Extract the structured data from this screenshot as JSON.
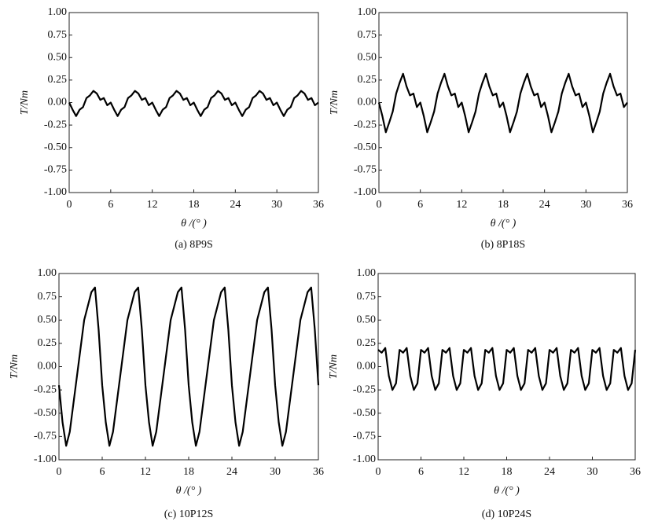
{
  "chart_data": [
    {
      "type": "line",
      "caption": "(a) 8P9S",
      "xlabel": "θ /(°  )",
      "ylabel": "T/Nm",
      "color": "#000000",
      "xlim": [
        0,
        36
      ],
      "xticks": [
        0,
        6,
        12,
        18,
        24,
        30,
        36
      ],
      "ylim": [
        -1,
        1
      ],
      "yticks": [
        {
          "value": -1,
          "label": "-1.00"
        },
        {
          "value": -0.75,
          "label": "-0.75"
        },
        {
          "value": -0.5,
          "label": "-0.50"
        },
        {
          "value": -0.25,
          "label": "-0.25"
        },
        {
          "value": 0,
          "label": "0.00"
        },
        {
          "value": 0.25,
          "label": "0.25"
        },
        {
          "value": 0.5,
          "label": "0.50"
        },
        {
          "value": 0.75,
          "label": "0.75"
        },
        {
          "value": 1,
          "label": "1.00"
        }
      ],
      "x": [
        0,
        0.5,
        1,
        1.5,
        2,
        2.5,
        3,
        3.5,
        4,
        4.5,
        5,
        5.5,
        6,
        6.5,
        7,
        7.5,
        8,
        8.5,
        9,
        9.5,
        10,
        10.5,
        11,
        11.5,
        12,
        12.5,
        13,
        13.5,
        14,
        14.5,
        15,
        15.5,
        16,
        16.5,
        17,
        17.5,
        18,
        18.5,
        19,
        19.5,
        20,
        20.5,
        21,
        21.5,
        22,
        22.5,
        23,
        23.5,
        24,
        24.5,
        25,
        25.5,
        26,
        26.5,
        27,
        27.5,
        28,
        28.5,
        29,
        29.5,
        30,
        30.5,
        31,
        31.5,
        32,
        32.5,
        33,
        33.5,
        34,
        34.5,
        35,
        35.5,
        36
      ],
      "values": [
        0.0,
        -0.08,
        -0.15,
        -0.08,
        -0.05,
        0.05,
        0.08,
        0.13,
        0.1,
        0.03,
        0.05,
        -0.03,
        0.0,
        -0.08,
        -0.15,
        -0.08,
        -0.05,
        0.05,
        0.08,
        0.13,
        0.1,
        0.03,
        0.05,
        -0.03,
        0.0,
        -0.08,
        -0.15,
        -0.08,
        -0.05,
        0.05,
        0.08,
        0.13,
        0.1,
        0.03,
        0.05,
        -0.03,
        0.0,
        -0.08,
        -0.15,
        -0.08,
        -0.05,
        0.05,
        0.08,
        0.13,
        0.1,
        0.03,
        0.05,
        -0.03,
        0.0,
        -0.08,
        -0.15,
        -0.08,
        -0.05,
        0.05,
        0.08,
        0.13,
        0.1,
        0.03,
        0.05,
        -0.03,
        0.0,
        -0.08,
        -0.15,
        -0.08,
        -0.05,
        0.05,
        0.08,
        0.13,
        0.1,
        0.03,
        0.05,
        -0.03,
        0.0
      ]
    },
    {
      "type": "line",
      "caption": "(b) 8P18S",
      "xlabel": "θ /(°  )",
      "ylabel": "T/Nm",
      "color": "#000000",
      "xlim": [
        0,
        36
      ],
      "xticks": [
        0,
        6,
        12,
        18,
        24,
        30,
        36
      ],
      "ylim": [
        -1,
        1
      ],
      "yticks": [
        {
          "value": -1,
          "label": "-1.00"
        },
        {
          "value": -0.75,
          "label": "-0.75"
        },
        {
          "value": -0.5,
          "label": "-0.50"
        },
        {
          "value": -0.25,
          "label": "-0.25"
        },
        {
          "value": 0,
          "label": "0.00"
        },
        {
          "value": 0.25,
          "label": "0.25"
        },
        {
          "value": 0.5,
          "label": "0.50"
        },
        {
          "value": 0.75,
          "label": "0.75"
        },
        {
          "value": 1,
          "label": "1.00"
        }
      ],
      "x": [
        0,
        0.5,
        1,
        1.5,
        2,
        2.5,
        3,
        3.5,
        4,
        4.5,
        5,
        5.5,
        6,
        6.5,
        7,
        7.5,
        8,
        8.5,
        9,
        9.5,
        10,
        10.5,
        11,
        11.5,
        12,
        12.5,
        13,
        13.5,
        14,
        14.5,
        15,
        15.5,
        16,
        16.5,
        17,
        17.5,
        18,
        18.5,
        19,
        19.5,
        20,
        20.5,
        21,
        21.5,
        22,
        22.5,
        23,
        23.5,
        24,
        24.5,
        25,
        25.5,
        26,
        26.5,
        27,
        27.5,
        28,
        28.5,
        29,
        29.5,
        30,
        30.5,
        31,
        31.5,
        32,
        32.5,
        33,
        33.5,
        34,
        34.5,
        35,
        35.5,
        36
      ],
      "values": [
        0.0,
        -0.15,
        -0.33,
        -0.22,
        -0.1,
        0.1,
        0.22,
        0.32,
        0.18,
        0.08,
        0.1,
        -0.05,
        0.0,
        -0.15,
        -0.33,
        -0.22,
        -0.1,
        0.1,
        0.22,
        0.32,
        0.18,
        0.08,
        0.1,
        -0.05,
        0.0,
        -0.15,
        -0.33,
        -0.22,
        -0.1,
        0.1,
        0.22,
        0.32,
        0.18,
        0.08,
        0.1,
        -0.05,
        0.0,
        -0.15,
        -0.33,
        -0.22,
        -0.1,
        0.1,
        0.22,
        0.32,
        0.18,
        0.08,
        0.1,
        -0.05,
        0.0,
        -0.15,
        -0.33,
        -0.22,
        -0.1,
        0.1,
        0.22,
        0.32,
        0.18,
        0.08,
        0.1,
        -0.05,
        0.0,
        -0.15,
        -0.33,
        -0.22,
        -0.1,
        0.1,
        0.22,
        0.32,
        0.18,
        0.08,
        0.1,
        -0.05,
        0.0
      ]
    },
    {
      "type": "line",
      "caption": "(c) 10P12S",
      "xlabel": "θ /(°  )",
      "ylabel": "T/Nm",
      "color": "#000000",
      "xlim": [
        0,
        36
      ],
      "xticks": [
        0,
        6,
        12,
        18,
        24,
        30,
        36
      ],
      "ylim": [
        -1,
        1
      ],
      "yticks": [
        {
          "value": -1,
          "label": "-1.00"
        },
        {
          "value": -0.75,
          "label": "-0.75"
        },
        {
          "value": -0.5,
          "label": "-0.50"
        },
        {
          "value": -0.25,
          "label": "-0.25"
        },
        {
          "value": 0,
          "label": "0.00"
        },
        {
          "value": 0.25,
          "label": "0.25"
        },
        {
          "value": 0.5,
          "label": "0.50"
        },
        {
          "value": 0.75,
          "label": "0.75"
        },
        {
          "value": 1,
          "label": "1.00"
        }
      ],
      "x": [
        0,
        0.5,
        1,
        1.5,
        2,
        2.5,
        3,
        3.5,
        4,
        4.5,
        5,
        5.5,
        6,
        6.5,
        7,
        7.5,
        8,
        8.5,
        9,
        9.5,
        10,
        10.5,
        11,
        11.5,
        12,
        12.5,
        13,
        13.5,
        14,
        14.5,
        15,
        15.5,
        16,
        16.5,
        17,
        17.5,
        18,
        18.5,
        19,
        19.5,
        20,
        20.5,
        21,
        21.5,
        22,
        22.5,
        23,
        23.5,
        24,
        24.5,
        25,
        25.5,
        26,
        26.5,
        27,
        27.5,
        28,
        28.5,
        29,
        29.5,
        30,
        30.5,
        31,
        31.5,
        32,
        32.5,
        33,
        33.5,
        34,
        34.5,
        35,
        35.5,
        36
      ],
      "values": [
        -0.2,
        -0.6,
        -0.85,
        -0.7,
        -0.4,
        -0.1,
        0.2,
        0.5,
        0.65,
        0.8,
        0.85,
        0.4,
        -0.2,
        -0.6,
        -0.85,
        -0.7,
        -0.4,
        -0.1,
        0.2,
        0.5,
        0.65,
        0.8,
        0.85,
        0.4,
        -0.2,
        -0.6,
        -0.85,
        -0.7,
        -0.4,
        -0.1,
        0.2,
        0.5,
        0.65,
        0.8,
        0.85,
        0.4,
        -0.2,
        -0.6,
        -0.85,
        -0.7,
        -0.4,
        -0.1,
        0.2,
        0.5,
        0.65,
        0.8,
        0.85,
        0.4,
        -0.2,
        -0.6,
        -0.85,
        -0.7,
        -0.4,
        -0.1,
        0.2,
        0.5,
        0.65,
        0.8,
        0.85,
        0.4,
        -0.2,
        -0.6,
        -0.85,
        -0.7,
        -0.4,
        -0.1,
        0.2,
        0.5,
        0.65,
        0.8,
        0.85,
        0.4,
        -0.2
      ]
    },
    {
      "type": "line",
      "caption": "(d) 10P24S",
      "xlabel": "θ /(°  )",
      "ylabel": "T/Nm",
      "color": "#000000",
      "xlim": [
        0,
        36
      ],
      "xticks": [
        0,
        6,
        12,
        18,
        24,
        30,
        36
      ],
      "ylim": [
        -1,
        1
      ],
      "yticks": [
        {
          "value": -1,
          "label": "-1.00"
        },
        {
          "value": -0.75,
          "label": "-0.75"
        },
        {
          "value": -0.5,
          "label": "-0.50"
        },
        {
          "value": -0.25,
          "label": "-0.25"
        },
        {
          "value": 0,
          "label": "0.00"
        },
        {
          "value": 0.25,
          "label": "0.25"
        },
        {
          "value": 0.5,
          "label": "0.50"
        },
        {
          "value": 0.75,
          "label": "0.75"
        },
        {
          "value": 1,
          "label": "1.00"
        }
      ],
      "x": [
        0,
        0.5,
        1,
        1.5,
        2,
        2.5,
        3,
        3.5,
        4,
        4.5,
        5,
        5.5,
        6,
        6.5,
        7,
        7.5,
        8,
        8.5,
        9,
        9.5,
        10,
        10.5,
        11,
        11.5,
        12,
        12.5,
        13,
        13.5,
        14,
        14.5,
        15,
        15.5,
        16,
        16.5,
        17,
        17.5,
        18,
        18.5,
        19,
        19.5,
        20,
        20.5,
        21,
        21.5,
        22,
        22.5,
        23,
        23.5,
        24,
        24.5,
        25,
        25.5,
        26,
        26.5,
        27,
        27.5,
        28,
        28.5,
        29,
        29.5,
        30,
        30.5,
        31,
        31.5,
        32,
        32.5,
        33,
        33.5,
        34,
        34.5,
        35,
        35.5,
        36
      ],
      "values": [
        0.18,
        0.15,
        0.2,
        -0.1,
        -0.25,
        -0.18,
        0.18,
        0.15,
        0.2,
        -0.1,
        -0.25,
        -0.18,
        0.18,
        0.15,
        0.2,
        -0.1,
        -0.25,
        -0.18,
        0.18,
        0.15,
        0.2,
        -0.1,
        -0.25,
        -0.18,
        0.18,
        0.15,
        0.2,
        -0.1,
        -0.25,
        -0.18,
        0.18,
        0.15,
        0.2,
        -0.1,
        -0.25,
        -0.18,
        0.18,
        0.15,
        0.2,
        -0.1,
        -0.25,
        -0.18,
        0.18,
        0.15,
        0.2,
        -0.1,
        -0.25,
        -0.18,
        0.18,
        0.15,
        0.2,
        -0.1,
        -0.25,
        -0.18,
        0.18,
        0.15,
        0.2,
        -0.1,
        -0.25,
        -0.18,
        0.18,
        0.15,
        0.2,
        -0.1,
        -0.25,
        -0.18,
        0.18,
        0.15,
        0.2,
        -0.1,
        -0.25,
        -0.18,
        0.18
      ]
    }
  ]
}
